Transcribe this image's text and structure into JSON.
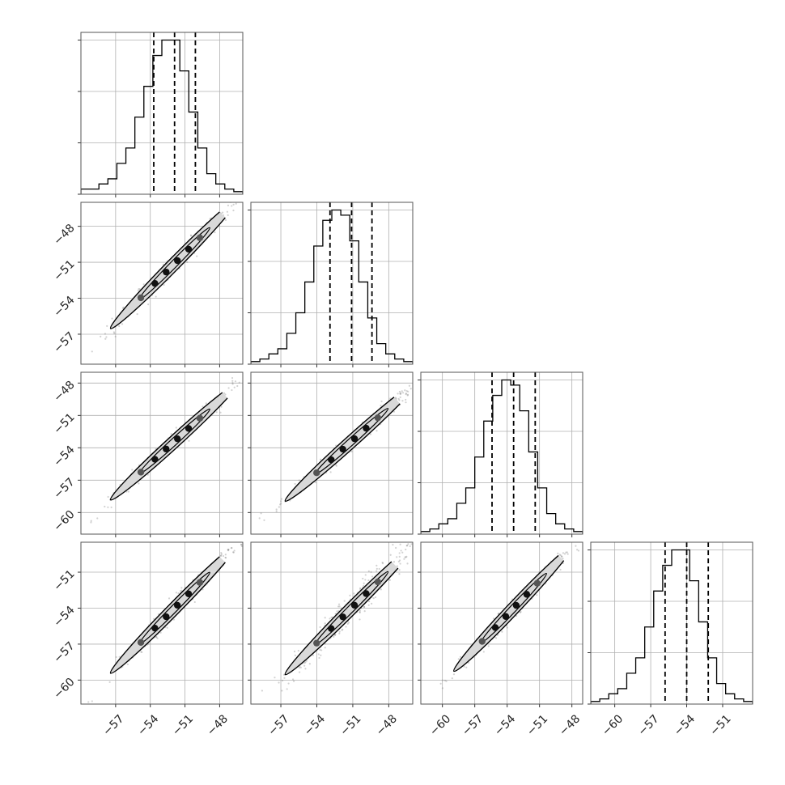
{
  "chart_data": {
    "type": "corner",
    "title": "",
    "n_params": 4,
    "grid": true,
    "params": [
      {
        "index": 0,
        "range": [
          -60.0,
          -46.0
        ],
        "quantiles": [
          -53.7,
          -51.9,
          -50.1
        ],
        "ticks": [
          -57,
          -54,
          -51,
          -48
        ],
        "hist": [
          1,
          1,
          2,
          3,
          6,
          9,
          15,
          21,
          27,
          30,
          30,
          24,
          16,
          9,
          4,
          2,
          1,
          0.5
        ]
      },
      {
        "index": 1,
        "range": [
          -59.5,
          -46.0
        ],
        "quantiles": [
          -52.9,
          -51.1,
          -49.4
        ],
        "ticks": [
          -57,
          -54,
          -51,
          -48
        ],
        "hist": [
          0.5,
          1,
          2,
          3,
          6,
          10,
          16,
          23,
          28,
          30,
          29,
          24,
          16,
          9,
          4,
          2,
          1,
          0.5
        ]
      },
      {
        "index": 2,
        "range": [
          -62.0,
          -47.0
        ],
        "quantiles": [
          -55.4,
          -53.4,
          -51.4
        ],
        "ticks": [
          -60,
          -57,
          -54,
          -51,
          -48
        ],
        "hist": [
          0.5,
          1,
          2,
          3,
          6,
          9,
          15,
          22,
          27,
          30,
          29,
          24,
          16,
          9,
          4,
          2,
          1,
          0.5
        ]
      },
      {
        "index": 3,
        "range": [
          -62.0,
          -48.5
        ],
        "quantiles": [
          -55.8,
          -54.0,
          -52.2
        ],
        "ticks": [
          -60,
          -57,
          -54,
          -51
        ],
        "hist": [
          0.5,
          1,
          2,
          3,
          6,
          9,
          15,
          22,
          27,
          30,
          30,
          24,
          16,
          9,
          4,
          2,
          1,
          0.5
        ]
      }
    ],
    "hist_y_ticks": [
      0,
      10,
      20,
      30
    ],
    "hist_y_max": 31.5,
    "pairs": [
      {
        "row": 1,
        "col": 0,
        "center": [
          -51.9,
          -51.1
        ],
        "slope": 0.98,
        "rho": 0.993
      },
      {
        "row": 2,
        "col": 0,
        "center": [
          -51.9,
          -53.4
        ],
        "slope": 0.98,
        "rho": 0.993
      },
      {
        "row": 2,
        "col": 1,
        "center": [
          -51.1,
          -53.4
        ],
        "slope": 1.0,
        "rho": 0.993
      },
      {
        "row": 3,
        "col": 0,
        "center": [
          -51.9,
          -54.0
        ],
        "slope": 0.98,
        "rho": 0.993
      },
      {
        "row": 3,
        "col": 1,
        "center": [
          -51.1,
          -54.0
        ],
        "slope": 1.0,
        "rho": 0.985
      },
      {
        "row": 3,
        "col": 2,
        "center": [
          -53.4,
          -54.0
        ],
        "slope": 0.95,
        "rho": 0.993
      }
    ],
    "colors": {
      "line": "#000000",
      "grid": "#b0b0b0",
      "points": "#7f7f7f",
      "contour_fill": "#d9d9d9",
      "dense": "#111111"
    }
  }
}
